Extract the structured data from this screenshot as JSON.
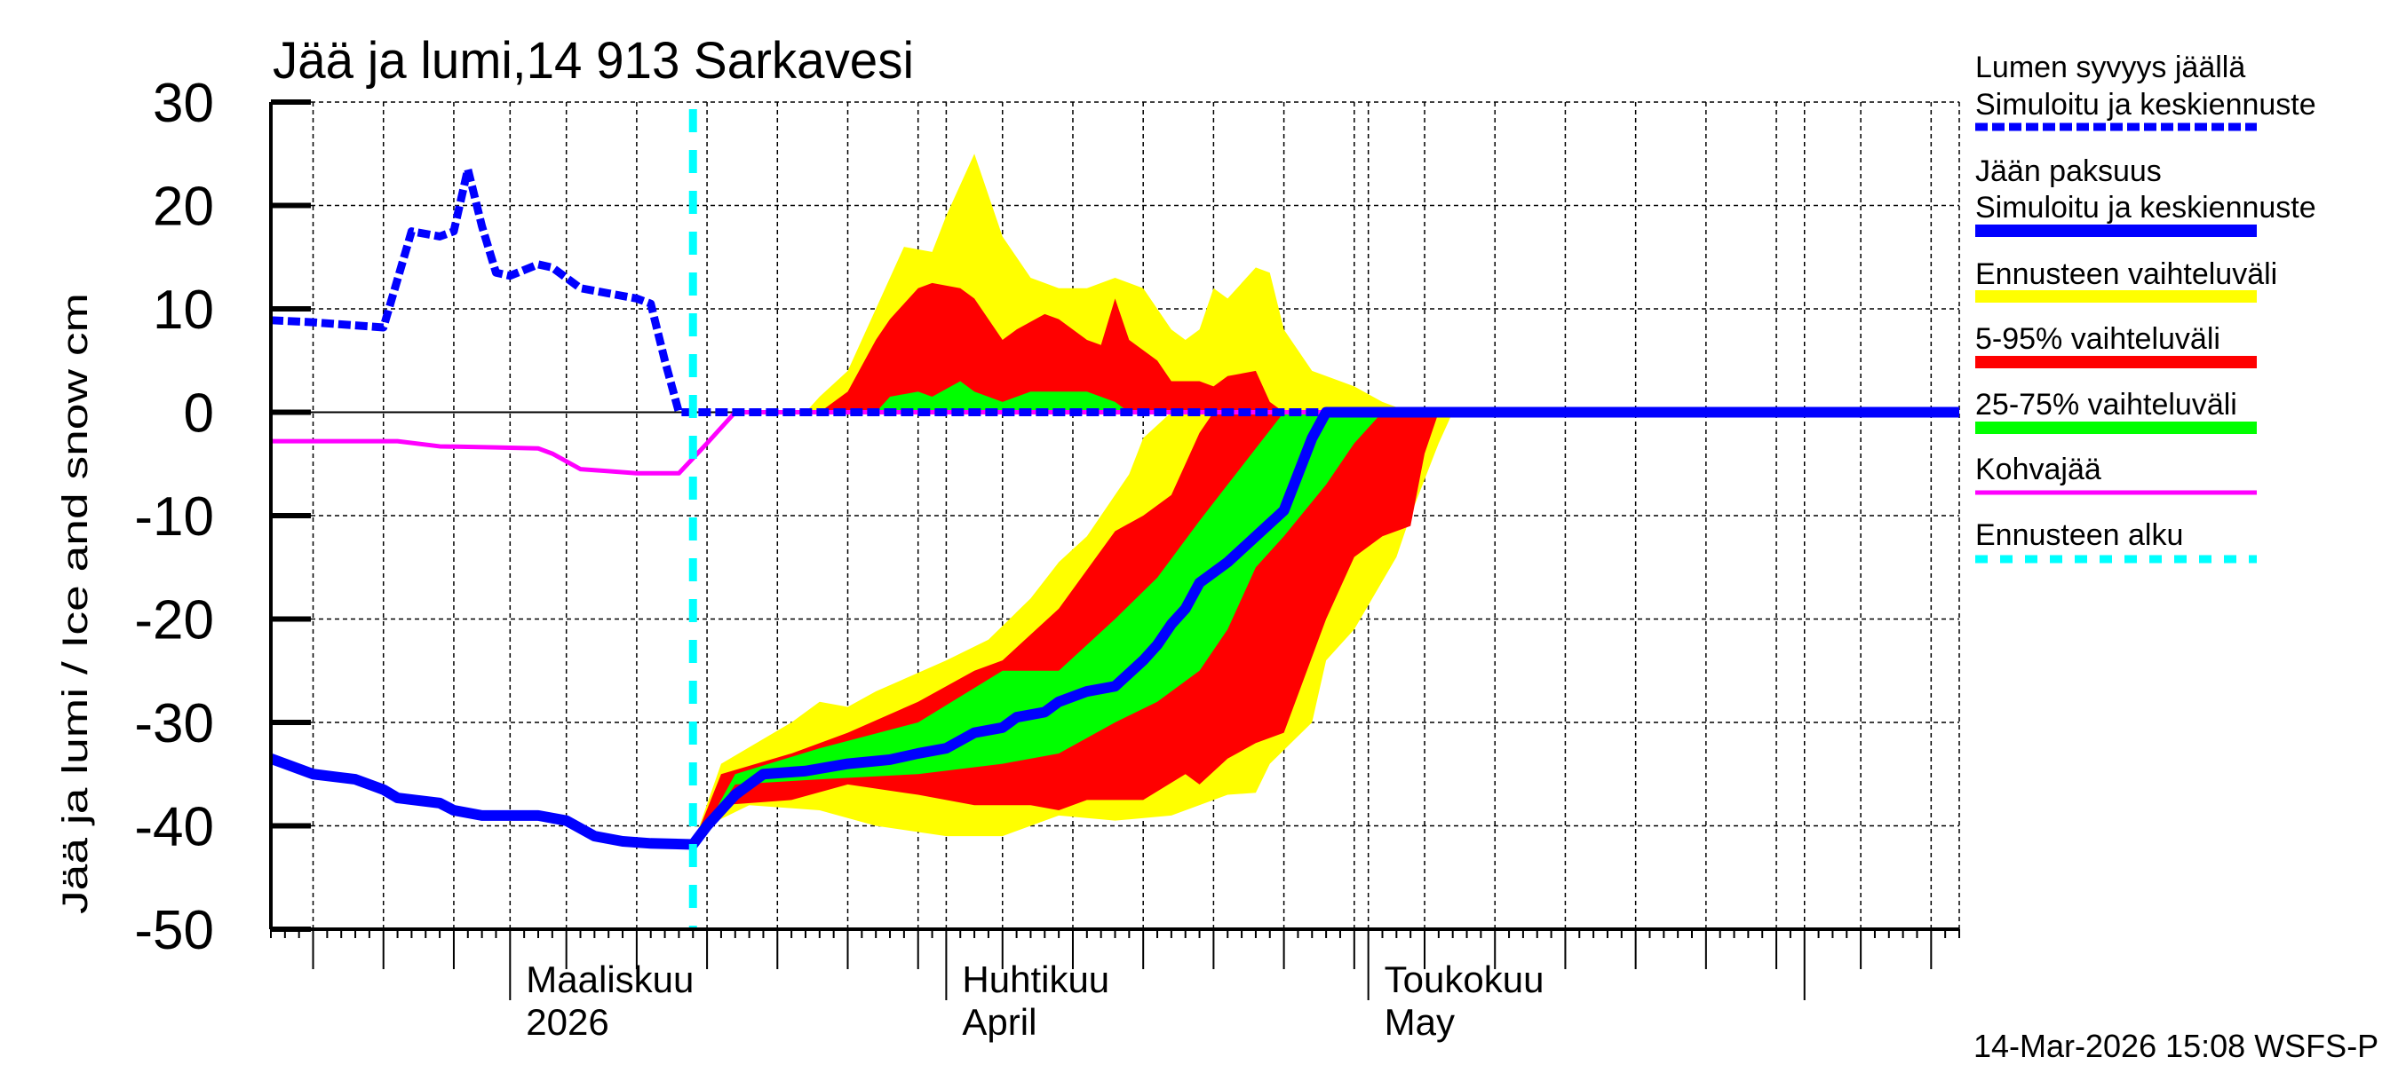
{
  "chart_data": {
    "type": "area",
    "title": "Jää ja lumi,14 913 Sarkavesi",
    "ylabel": "Jää ja lumi / Ice and snow    cm",
    "ylim": [
      -50,
      30
    ],
    "yticks": [
      30,
      20,
      10,
      0,
      -10,
      -20,
      -30,
      -40,
      -50
    ],
    "xlim": [
      "2026-02-12",
      "2026-06-12"
    ],
    "x_month_labels": [
      {
        "date": "2026-03-01",
        "line1": "Maaliskuu",
        "line2": "2026"
      },
      {
        "date": "2026-04-01",
        "line1": "Huhtikuu",
        "line2": "April"
      },
      {
        "date": "2026-05-01",
        "line1": "Toukokuu",
        "line2": "May"
      }
    ],
    "grid": true,
    "legend_position": "right",
    "forecast_start": "2026-03-14",
    "bands": [
      {
        "name": "Ennusteen vaihteluväli",
        "color": "#ffff00",
        "part": "snow",
        "upper": [
          [
            "2026-03-22",
            0
          ],
          [
            "2026-03-23",
            1.5
          ],
          [
            "2026-03-25",
            4
          ],
          [
            "2026-03-27",
            10
          ],
          [
            "2026-03-29",
            16
          ],
          [
            "2026-03-31",
            15.5
          ],
          [
            "2026-04-01",
            19
          ],
          [
            "2026-04-02",
            22
          ],
          [
            "2026-04-03",
            25
          ],
          [
            "2026-04-05",
            17
          ],
          [
            "2026-04-07",
            13
          ],
          [
            "2026-04-09",
            12
          ],
          [
            "2026-04-11",
            12
          ],
          [
            "2026-04-13",
            13
          ],
          [
            "2026-04-15",
            12
          ],
          [
            "2026-04-17",
            8
          ],
          [
            "2026-04-18",
            7
          ],
          [
            "2026-04-19",
            8
          ],
          [
            "2026-04-20",
            12
          ],
          [
            "2026-04-21",
            11
          ],
          [
            "2026-04-23",
            14
          ],
          [
            "2026-04-24",
            13.5
          ],
          [
            "2026-04-25",
            8
          ],
          [
            "2026-04-26",
            6
          ],
          [
            "2026-04-27",
            4
          ],
          [
            "2026-04-29",
            3
          ],
          [
            "2026-04-30",
            2.5
          ],
          [
            "2026-05-02",
            1
          ],
          [
            "2026-05-04",
            0
          ]
        ],
        "lower": [
          [
            "2026-03-22",
            0
          ],
          [
            "2026-05-04",
            0
          ]
        ]
      },
      {
        "name": "5-95% vaihteluväli",
        "color": "#ff0000",
        "part": "snow",
        "upper": [
          [
            "2026-03-23",
            0
          ],
          [
            "2026-03-25",
            2
          ],
          [
            "2026-03-27",
            7
          ],
          [
            "2026-03-28",
            9
          ],
          [
            "2026-03-30",
            12
          ],
          [
            "2026-03-31",
            12.5
          ],
          [
            "2026-04-02",
            12
          ],
          [
            "2026-04-03",
            11
          ],
          [
            "2026-04-05",
            7
          ],
          [
            "2026-04-06",
            8
          ],
          [
            "2026-04-08",
            9.5
          ],
          [
            "2026-04-09",
            9
          ],
          [
            "2026-04-11",
            7
          ],
          [
            "2026-04-12",
            6.5
          ],
          [
            "2026-04-13",
            11
          ],
          [
            "2026-04-14",
            7
          ],
          [
            "2026-04-16",
            5
          ],
          [
            "2026-04-17",
            3
          ],
          [
            "2026-04-19",
            3
          ],
          [
            "2026-04-20",
            2.5
          ],
          [
            "2026-04-21",
            3.5
          ],
          [
            "2026-04-23",
            4
          ],
          [
            "2026-04-24",
            1
          ],
          [
            "2026-04-25",
            0
          ]
        ],
        "lower": [
          [
            "2026-03-23",
            0
          ],
          [
            "2026-04-25",
            0
          ]
        ]
      },
      {
        "name": "25-75% vaihteluväli",
        "color": "#00ff00",
        "part": "snow",
        "upper": [
          [
            "2026-03-27",
            0
          ],
          [
            "2026-03-28",
            1.5
          ],
          [
            "2026-03-30",
            2
          ],
          [
            "2026-03-31",
            1.5
          ],
          [
            "2026-04-02",
            3
          ],
          [
            "2026-04-03",
            2
          ],
          [
            "2026-04-05",
            1
          ],
          [
            "2026-04-07",
            2
          ],
          [
            "2026-04-11",
            2
          ],
          [
            "2026-04-13",
            1
          ],
          [
            "2026-04-14",
            0
          ]
        ],
        "lower": [
          [
            "2026-03-27",
            0
          ],
          [
            "2026-04-14",
            0
          ]
        ]
      },
      {
        "name": "Ennusteen vaihteluväli",
        "color": "#ffff00",
        "part": "ice",
        "upper": [
          [
            "2026-03-14",
            -41.8
          ],
          [
            "2026-03-16",
            -34
          ],
          [
            "2026-03-21",
            -30
          ],
          [
            "2026-03-23",
            -28
          ],
          [
            "2026-03-25",
            -28.5
          ],
          [
            "2026-03-27",
            -27
          ],
          [
            "2026-04-01",
            -24
          ],
          [
            "2026-04-04",
            -22
          ],
          [
            "2026-04-07",
            -18
          ],
          [
            "2026-04-09",
            -14.5
          ],
          [
            "2026-04-11",
            -12
          ],
          [
            "2026-04-14",
            -6
          ],
          [
            "2026-04-15",
            -2.5
          ],
          [
            "2026-04-17",
            0
          ]
        ],
        "lower": [
          [
            "2026-03-14",
            -41.8
          ],
          [
            "2026-03-15",
            -40
          ],
          [
            "2026-03-18",
            -38
          ],
          [
            "2026-03-23",
            -38.5
          ],
          [
            "2026-03-27",
            -40
          ],
          [
            "2026-04-01",
            -41
          ],
          [
            "2026-04-05",
            -41
          ],
          [
            "2026-04-09",
            -39
          ],
          [
            "2026-04-13",
            -39.5
          ],
          [
            "2026-04-17",
            -39
          ],
          [
            "2026-04-21",
            -37
          ],
          [
            "2026-04-23",
            -36.8
          ],
          [
            "2026-04-24",
            -34
          ],
          [
            "2026-04-27",
            -30
          ],
          [
            "2026-04-28",
            -24
          ],
          [
            "2026-04-30",
            -21
          ],
          [
            "2026-05-03",
            -14
          ],
          [
            "2026-05-04",
            -10
          ],
          [
            "2026-05-06",
            -3
          ],
          [
            "2026-05-07",
            0
          ]
        ]
      },
      {
        "name": "5-95% vaihteluväli",
        "color": "#ff0000",
        "part": "ice",
        "upper": [
          [
            "2026-03-14",
            -41.8
          ],
          [
            "2026-03-16",
            -35
          ],
          [
            "2026-03-21",
            -33
          ],
          [
            "2026-03-25",
            -31
          ],
          [
            "2026-03-30",
            -28
          ],
          [
            "2026-04-03",
            -25
          ],
          [
            "2026-04-05",
            -24
          ],
          [
            "2026-04-09",
            -19
          ],
          [
            "2026-04-13",
            -11.5
          ],
          [
            "2026-04-15",
            -10
          ],
          [
            "2026-04-17",
            -8
          ],
          [
            "2026-04-19",
            -2
          ],
          [
            "2026-04-20",
            0
          ]
        ],
        "lower": [
          [
            "2026-03-14",
            -41.8
          ],
          [
            "2026-03-16",
            -38
          ],
          [
            "2026-03-21",
            -37.5
          ],
          [
            "2026-03-25",
            -36
          ],
          [
            "2026-03-30",
            -37
          ],
          [
            "2026-04-03",
            -38
          ],
          [
            "2026-04-07",
            -38
          ],
          [
            "2026-04-09",
            -38.5
          ],
          [
            "2026-04-11",
            -37.5
          ],
          [
            "2026-04-15",
            -37.5
          ],
          [
            "2026-04-18",
            -35
          ],
          [
            "2026-04-19",
            -36
          ],
          [
            "2026-04-21",
            -33.5
          ],
          [
            "2026-04-23",
            -32
          ],
          [
            "2026-04-25",
            -31
          ],
          [
            "2026-04-28",
            -20
          ],
          [
            "2026-04-30",
            -14
          ],
          [
            "2026-05-02",
            -12
          ],
          [
            "2026-05-04",
            -11
          ],
          [
            "2026-05-05",
            -4
          ],
          [
            "2026-05-06",
            0
          ]
        ]
      },
      {
        "name": "25-75% vaihteluväli",
        "color": "#00ff00",
        "part": "ice",
        "upper": [
          [
            "2026-03-15",
            -40
          ],
          [
            "2026-03-17",
            -35
          ],
          [
            "2026-03-23",
            -32.5
          ],
          [
            "2026-03-30",
            -30
          ],
          [
            "2026-04-05",
            -25
          ],
          [
            "2026-04-09",
            -25
          ],
          [
            "2026-04-13",
            -20
          ],
          [
            "2026-04-16",
            -16
          ],
          [
            "2026-04-19",
            -10.5
          ],
          [
            "2026-04-21",
            -7
          ],
          [
            "2026-04-23",
            -3.5
          ],
          [
            "2026-04-25",
            0
          ]
        ],
        "lower": [
          [
            "2026-03-15",
            -40
          ],
          [
            "2026-03-17",
            -36
          ],
          [
            "2026-03-23",
            -35.5
          ],
          [
            "2026-03-30",
            -35
          ],
          [
            "2026-04-05",
            -34
          ],
          [
            "2026-04-09",
            -33
          ],
          [
            "2026-04-13",
            -30
          ],
          [
            "2026-04-16",
            -28
          ],
          [
            "2026-04-19",
            -25
          ],
          [
            "2026-04-21",
            -21
          ],
          [
            "2026-04-23",
            -15
          ],
          [
            "2026-04-25",
            -12
          ],
          [
            "2026-04-28",
            -7
          ],
          [
            "2026-04-30",
            -3
          ],
          [
            "2026-05-02",
            0
          ]
        ]
      }
    ],
    "series": [
      {
        "name": "Kohvajää",
        "color": "#ff00ff",
        "style": "solid",
        "points": [
          [
            "2026-02-12",
            -2.8
          ],
          [
            "2026-02-21",
            -2.8
          ],
          [
            "2026-02-24",
            -3.3
          ],
          [
            "2026-02-28",
            -3.4
          ],
          [
            "2026-03-03",
            -3.5
          ],
          [
            "2026-03-04",
            -4.0
          ],
          [
            "2026-03-06",
            -5.5
          ],
          [
            "2026-03-08",
            -5.7
          ],
          [
            "2026-03-10",
            -5.9
          ],
          [
            "2026-03-13",
            -5.9
          ],
          [
            "2026-03-15",
            -3
          ],
          [
            "2026-03-17",
            0
          ],
          [
            "2026-06-12",
            0
          ]
        ]
      },
      {
        "name": "Lumen syvyys jäällä – Simuloitu ja keskiennuste",
        "color": "#0000ff",
        "style": "dashed",
        "points": [
          [
            "2026-02-12",
            8.9
          ],
          [
            "2026-02-15",
            8.7
          ],
          [
            "2026-02-19",
            8.3
          ],
          [
            "2026-02-20",
            8.2
          ],
          [
            "2026-02-22",
            17.5
          ],
          [
            "2026-02-24",
            17
          ],
          [
            "2026-02-25",
            17.5
          ],
          [
            "2026-02-26",
            23.5
          ],
          [
            "2026-02-27",
            18
          ],
          [
            "2026-02-28",
            13.5
          ],
          [
            "2026-03-01",
            13.2
          ],
          [
            "2026-03-03",
            14.3
          ],
          [
            "2026-03-04",
            14
          ],
          [
            "2026-03-06",
            12
          ],
          [
            "2026-03-08",
            11.5
          ],
          [
            "2026-03-10",
            11
          ],
          [
            "2026-03-11",
            10.5
          ],
          [
            "2026-03-12",
            5
          ],
          [
            "2026-03-13",
            0
          ],
          [
            "2026-06-12",
            0
          ]
        ]
      },
      {
        "name": "Jään paksuus – Simuloitu ja keskiennuste",
        "color": "#0000ff",
        "style": "solid",
        "points": [
          [
            "2026-02-12",
            -33.5
          ],
          [
            "2026-02-15",
            -35
          ],
          [
            "2026-02-18",
            -35.5
          ],
          [
            "2026-02-20",
            -36.5
          ],
          [
            "2026-02-21",
            -37.3
          ],
          [
            "2026-02-24",
            -37.8
          ],
          [
            "2026-02-25",
            -38.5
          ],
          [
            "2026-02-27",
            -39
          ],
          [
            "2026-03-03",
            -39
          ],
          [
            "2026-03-05",
            -39.5
          ],
          [
            "2026-03-07",
            -41
          ],
          [
            "2026-03-09",
            -41.5
          ],
          [
            "2026-03-11",
            -41.7
          ],
          [
            "2026-03-14",
            -41.8
          ],
          [
            "2026-03-15",
            -40
          ],
          [
            "2026-03-16",
            -38.5
          ],
          [
            "2026-03-17",
            -37
          ],
          [
            "2026-03-18",
            -36
          ],
          [
            "2026-03-19",
            -35
          ],
          [
            "2026-03-22",
            -34.7
          ],
          [
            "2026-03-25",
            -34
          ],
          [
            "2026-03-28",
            -33.6
          ],
          [
            "2026-03-30",
            -33
          ],
          [
            "2026-04-01",
            -32.5
          ],
          [
            "2026-04-03",
            -31
          ],
          [
            "2026-04-05",
            -30.5
          ],
          [
            "2026-04-06",
            -29.5
          ],
          [
            "2026-04-08",
            -29
          ],
          [
            "2026-04-09",
            -28
          ],
          [
            "2026-04-11",
            -27
          ],
          [
            "2026-04-13",
            -26.5
          ],
          [
            "2026-04-15",
            -24
          ],
          [
            "2026-04-16",
            -22.5
          ],
          [
            "2026-04-17",
            -20.5
          ],
          [
            "2026-04-18",
            -19
          ],
          [
            "2026-04-19",
            -16.5
          ],
          [
            "2026-04-21",
            -14.5
          ],
          [
            "2026-04-23",
            -12
          ],
          [
            "2026-04-25",
            -9.5
          ],
          [
            "2026-04-26",
            -6
          ],
          [
            "2026-04-27",
            -2.5
          ],
          [
            "2026-04-28",
            0
          ],
          [
            "2026-06-12",
            0
          ]
        ]
      }
    ]
  },
  "legend": [
    {
      "line1": "Lumen syvyys jäällä",
      "line2": "Simuloitu ja keskiennuste",
      "color": "#0000ff",
      "style": "dashed"
    },
    {
      "line1": "Jään paksuus",
      "line2": "Simuloitu ja keskiennuste",
      "color": "#0000ff",
      "style": "solid"
    },
    {
      "line1": "Ennusteen vaihteluväli",
      "color": "#ffff00",
      "style": "band"
    },
    {
      "line1": "5-95% vaihteluväli",
      "color": "#ff0000",
      "style": "band"
    },
    {
      "line1": "25-75% vaihteluväli",
      "color": "#00ff00",
      "style": "band"
    },
    {
      "line1": "Kohvajää",
      "color": "#ff00ff",
      "style": "thin"
    },
    {
      "line1": "Ennusteen alku",
      "color": "#00ffff",
      "style": "dotted"
    }
  ],
  "timestamp": "14-Mar-2026 15:08 WSFS-P"
}
